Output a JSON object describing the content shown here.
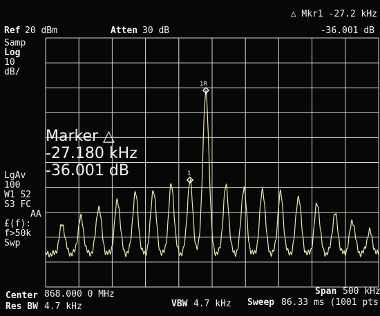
{
  "header": {
    "ref_label": "Ref",
    "ref_value": "20 dBm",
    "atten_label": "Atten",
    "atten_value": "30 dB",
    "marker_readout": "△ Mkr1  -27.2 kHz",
    "marker_level": "-36.001 dB"
  },
  "sidebar": [
    "Samp",
    "Log",
    "10",
    "dB/",
    "LgAv",
    "100",
    "W1  S2",
    "S3  FC",
    "AA",
    "£(f):",
    "f>50k",
    "Swp"
  ],
  "marker_box": {
    "title": "Marker △",
    "frequency": "-27.180 kHz",
    "level": "-36.001 dB"
  },
  "markers": {
    "reference": "1R",
    "delta": "1"
  },
  "footer": {
    "center_label": "Center",
    "center_value": "868.000 0 MHz",
    "span_label": "Span",
    "span_value": "500 kHz",
    "rbw_label": "Res BW",
    "rbw_value": "4.7 kHz",
    "vbw_label": "VBW",
    "vbw_value": "4.7 kHz",
    "sweep_label": "Sweep",
    "sweep_value": "86.33 ms (1001 pts)"
  }
}
